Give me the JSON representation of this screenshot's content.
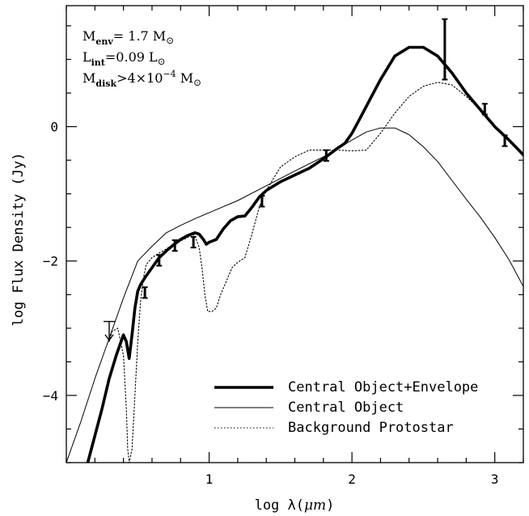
{
  "chart_data": {
    "type": "line",
    "xlabel_main": "log λ(",
    "xlabel_unit": "μm",
    "xlabel_close": ")",
    "ylabel": "log Flux Density (Jy)",
    "xlim": [
      0.0,
      3.2
    ],
    "ylim": [
      -5.0,
      1.8
    ],
    "x_ticks": [
      1,
      2,
      3
    ],
    "y_ticks": [
      -4,
      -2,
      0
    ],
    "x_tick_labels": [
      "1",
      "2",
      "3"
    ],
    "y_tick_labels": [
      "−4",
      "−2",
      "0"
    ],
    "x_minor_step": 0.2,
    "y_minor_step": 0.5,
    "grid": false,
    "legend_position": "bottom-right",
    "annotations": [
      {
        "base": "M",
        "sub": "env",
        "rest": "=  1.7  M",
        "tail_sub": "⊙",
        "sup": ""
      },
      {
        "base": "L",
        "sub": "int",
        "rest": "=0.09  L",
        "tail_sub": "⊙",
        "sup": ""
      },
      {
        "base": "M",
        "sub": "disk",
        "rest": ">4×10",
        "sup": "−4",
        "after_sup": "  M",
        "tail_sub": "⊙"
      }
    ],
    "series": [
      {
        "name": "Central Object+Envelope",
        "style": "thick",
        "color": "#000000",
        "x": [
          0.15,
          0.2,
          0.25,
          0.3,
          0.35,
          0.4,
          0.42,
          0.44,
          0.46,
          0.48,
          0.5,
          0.52,
          0.55,
          0.6,
          0.65,
          0.7,
          0.75,
          0.8,
          0.85,
          0.9,
          0.93,
          0.96,
          0.98,
          1.0,
          1.05,
          1.1,
          1.15,
          1.2,
          1.25,
          1.3,
          1.35,
          1.4,
          1.5,
          1.6,
          1.7,
          1.8,
          1.85,
          1.9,
          1.95,
          2.0,
          2.05,
          2.1,
          2.15,
          2.2,
          2.3,
          2.4,
          2.5,
          2.6,
          2.7,
          2.8,
          2.9,
          3.0,
          3.1,
          3.2
        ],
        "y": [
          -5.0,
          -4.6,
          -4.2,
          -3.75,
          -3.4,
          -3.1,
          -3.2,
          -3.45,
          -3.1,
          -2.7,
          -2.45,
          -2.35,
          -2.25,
          -2.1,
          -1.95,
          -1.85,
          -1.76,
          -1.68,
          -1.62,
          -1.58,
          -1.6,
          -1.68,
          -1.75,
          -1.72,
          -1.68,
          -1.52,
          -1.4,
          -1.34,
          -1.33,
          -1.2,
          -1.05,
          -0.95,
          -0.82,
          -0.72,
          -0.62,
          -0.48,
          -0.4,
          -0.32,
          -0.25,
          -0.1,
          0.1,
          0.3,
          0.5,
          0.7,
          1.05,
          1.18,
          1.18,
          1.05,
          0.8,
          0.5,
          0.25,
          0.0,
          -0.2,
          -0.42
        ]
      },
      {
        "name": "Central Object",
        "style": "thin",
        "color": "#000000",
        "x": [
          0.0,
          0.1,
          0.2,
          0.3,
          0.4,
          0.5,
          0.6,
          0.7,
          0.8,
          0.9,
          1.0,
          1.2,
          1.4,
          1.6,
          1.8,
          2.0,
          2.1,
          2.2,
          2.3,
          2.4,
          2.5,
          2.6,
          2.7,
          2.8,
          2.9,
          3.0,
          3.1,
          3.2
        ],
        "y": [
          -5.0,
          -4.4,
          -3.75,
          -3.15,
          -2.55,
          -2.0,
          -1.78,
          -1.58,
          -1.47,
          -1.37,
          -1.28,
          -1.1,
          -0.88,
          -0.66,
          -0.45,
          -0.2,
          -0.08,
          -0.02,
          -0.02,
          -0.12,
          -0.3,
          -0.52,
          -0.8,
          -1.08,
          -1.35,
          -1.65,
          -1.98,
          -2.38
        ]
      },
      {
        "name": "Background Protostar",
        "style": "dotted",
        "color": "#000000",
        "x": [
          0.3,
          0.32,
          0.36,
          0.4,
          0.42,
          0.43,
          0.44,
          0.46,
          0.48,
          0.5,
          0.52,
          0.54,
          0.56,
          0.6,
          0.65,
          0.7,
          0.75,
          0.8,
          0.85,
          0.88,
          0.9,
          0.93,
          0.95,
          0.97,
          0.99,
          1.02,
          1.05,
          1.08,
          1.12,
          1.16,
          1.2,
          1.25,
          1.3,
          1.35,
          1.4,
          1.5,
          1.6,
          1.7,
          1.8,
          1.9,
          2.0,
          2.1,
          2.2,
          2.3,
          2.4,
          2.5,
          2.6,
          2.7,
          2.8,
          2.9,
          3.0,
          3.1,
          3.2
        ],
        "y": [
          -3.2,
          -3.05,
          -3.0,
          -3.4,
          -4.2,
          -4.8,
          -5.0,
          -4.8,
          -4.0,
          -3.2,
          -2.6,
          -2.25,
          -2.05,
          -1.95,
          -1.88,
          -1.82,
          -1.75,
          -1.7,
          -1.65,
          -1.6,
          -1.62,
          -1.8,
          -2.1,
          -2.5,
          -2.75,
          -2.75,
          -2.7,
          -2.5,
          -2.3,
          -2.1,
          -2.02,
          -1.95,
          -1.6,
          -1.2,
          -0.95,
          -0.6,
          -0.45,
          -0.35,
          -0.35,
          -0.35,
          -0.36,
          -0.35,
          -0.1,
          0.2,
          0.45,
          0.6,
          0.66,
          0.62,
          0.45,
          0.25,
          0.0,
          -0.2,
          -0.42
        ]
      }
    ],
    "data_points": [
      {
        "x": 0.55,
        "y": -2.47,
        "err_lo": 0.08,
        "err_hi": 0.08
      },
      {
        "x": 0.65,
        "y": -1.99,
        "err_lo": 0.08,
        "err_hi": 0.08
      },
      {
        "x": 0.76,
        "y": -1.77,
        "err_lo": 0.08,
        "err_hi": 0.08
      },
      {
        "x": 0.89,
        "y": -1.72,
        "err_lo": 0.08,
        "err_hi": 0.08
      },
      {
        "x": 1.37,
        "y": -1.11,
        "err_lo": 0.08,
        "err_hi": 0.08
      },
      {
        "x": 1.82,
        "y": -0.43,
        "err_lo": 0.08,
        "err_hi": 0.08
      },
      {
        "x": 2.65,
        "y": 1.15,
        "err_lo": 0.45,
        "err_hi": 0.45
      },
      {
        "x": 2.93,
        "y": 0.26,
        "err_lo": 0.08,
        "err_hi": 0.08
      },
      {
        "x": 3.07,
        "y": -0.21,
        "err_lo": 0.08,
        "err_hi": 0.08
      }
    ],
    "upper_limits": [
      {
        "x": 0.3,
        "y": -2.9,
        "arrow_to": -3.18
      }
    ]
  }
}
